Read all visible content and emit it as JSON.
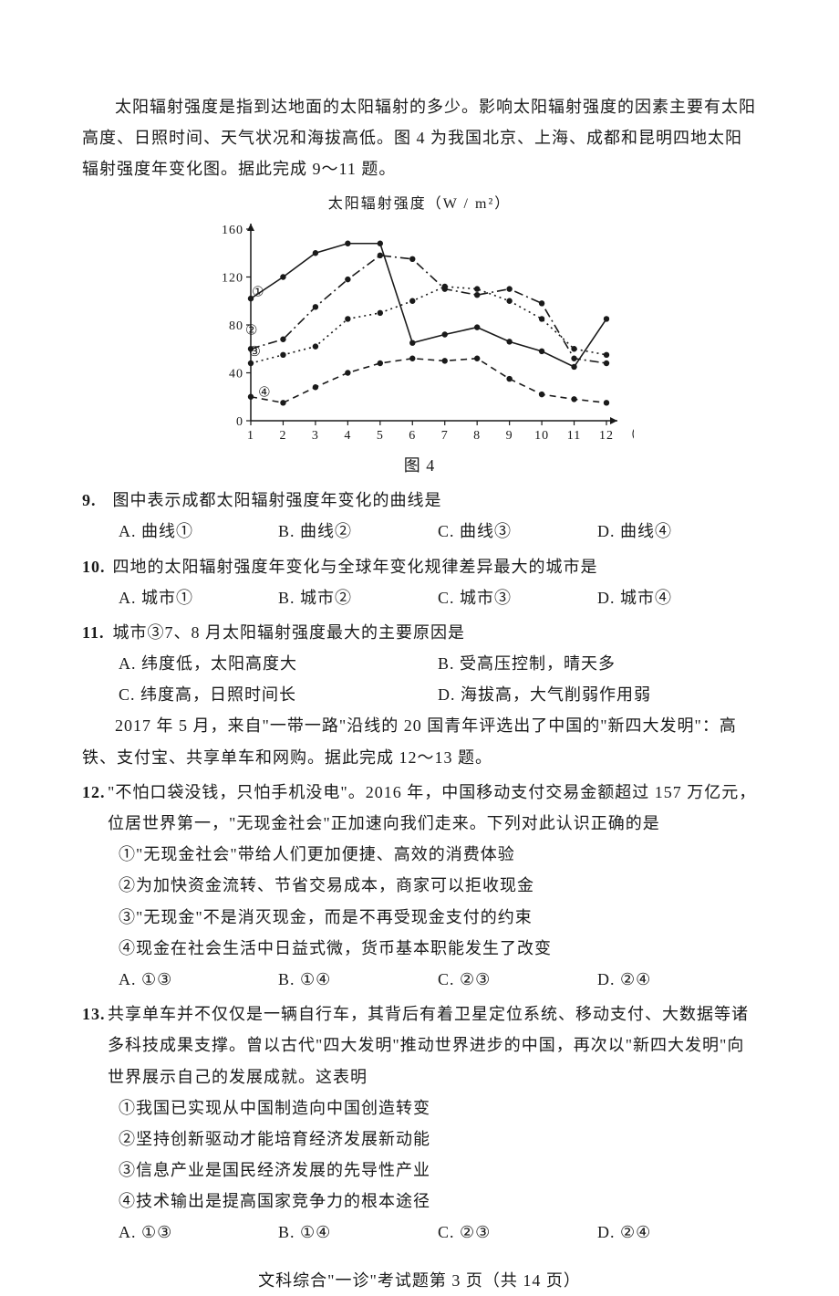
{
  "intro": "太阳辐射强度是指到达地面的太阳辐射的多少。影响太阳辐射强度的因素主要有太阳高度、日照时间、天气状况和海拔高低。图 4 为我国北京、上海、成都和昆明四地太阳辐射强度年变化图。据此完成 9～11 题。",
  "chart": {
    "title": "太阳辐射强度（W / m²）",
    "xlim": [
      1,
      12
    ],
    "ylim": [
      0,
      160
    ],
    "yticks": [
      0,
      40,
      80,
      120,
      160
    ],
    "xticks": [
      1,
      2,
      3,
      4,
      5,
      6,
      7,
      8,
      9,
      10,
      11,
      12
    ],
    "xlabel": "（月）",
    "axis_color": "#1a1a1a",
    "bg": "#ffffff",
    "marker_color": "#1a1a1a",
    "series": [
      {
        "id": "①",
        "style": "solid",
        "label_pos": [
          1.2,
          108
        ],
        "values": [
          102,
          120,
          140,
          148,
          148,
          65,
          72,
          78,
          66,
          58,
          45,
          85
        ]
      },
      {
        "id": "②",
        "style": "dashdot",
        "label_pos": [
          1.0,
          76
        ],
        "values": [
          60,
          68,
          95,
          118,
          138,
          135,
          110,
          105,
          110,
          98,
          52,
          48
        ]
      },
      {
        "id": "③",
        "style": "dot",
        "label_pos": [
          1.1,
          58
        ],
        "values": [
          48,
          55,
          62,
          85,
          90,
          100,
          112,
          110,
          100,
          85,
          60,
          55
        ]
      },
      {
        "id": "④",
        "style": "dash",
        "label_pos": [
          1.4,
          24
        ],
        "values": [
          20,
          15,
          28,
          40,
          48,
          52,
          50,
          52,
          35,
          22,
          18,
          15
        ]
      }
    ],
    "figcap": "图 4"
  },
  "q9": {
    "num": "9.",
    "stem": "图中表示成都太阳辐射强度年变化的曲线是",
    "A": "A.  曲线①",
    "B": "B.  曲线②",
    "C": "C.  曲线③",
    "D": "D.  曲线④"
  },
  "q10": {
    "num": "10.",
    "stem": "四地的太阳辐射强度年变化与全球年变化规律差异最大的城市是",
    "A": "A.  城市①",
    "B": "B.  城市②",
    "C": "C.  城市③",
    "D": "D.  城市④"
  },
  "q11": {
    "num": "11.",
    "stem": "城市③7、8 月太阳辐射强度最大的主要原因是",
    "A": "A.  纬度低，太阳高度大",
    "B": "B.  受高压控制，晴天多",
    "C": "C.  纬度高，日照时间长",
    "D": "D.  海拔高，大气削弱作用弱"
  },
  "intro12": "2017 年 5 月，来自\"一带一路\"沿线的 20 国青年评选出了中国的\"新四大发明\"：高铁、支付宝、共享单车和网购。据此完成 12～13 题。",
  "q12": {
    "num": "12.",
    "stem": "\"不怕口袋没钱，只怕手机没电\"。2016 年，中国移动支付交易金额超过 157 万亿元，位居世界第一，\"无现金社会\"正加速向我们走来。下列对此认识正确的是",
    "s1": "①\"无现金社会\"带给人们更加便捷、高效的消费体验",
    "s2": "②为加快资金流转、节省交易成本，商家可以拒收现金",
    "s3": "③\"无现金\"不是消灭现金，而是不再受现金支付的约束",
    "s4": "④现金在社会生活中日益式微，货币基本职能发生了改变",
    "A": "A.  ①③",
    "B": "B.  ①④",
    "C": "C.  ②③",
    "D": "D.  ②④"
  },
  "q13": {
    "num": "13.",
    "stem": "共享单车并不仅仅是一辆自行车，其背后有着卫星定位系统、移动支付、大数据等诸多科技成果支撑。曾以古代\"四大发明\"推动世界进步的中国，再次以\"新四大发明\"向世界展示自己的发展成就。这表明",
    "s1": "①我国已实现从中国制造向中国创造转变",
    "s2": "②坚持创新驱动才能培育经济发展新动能",
    "s3": "③信息产业是国民经济发展的先导性产业",
    "s4": "④技术输出是提高国家竞争力的根本途径",
    "A": "A.  ①③",
    "B": "B.  ①④",
    "C": "C.  ②③",
    "D": "D.  ②④"
  },
  "footer": "文科综合\"一诊\"考试题第 3 页（共 14 页）"
}
